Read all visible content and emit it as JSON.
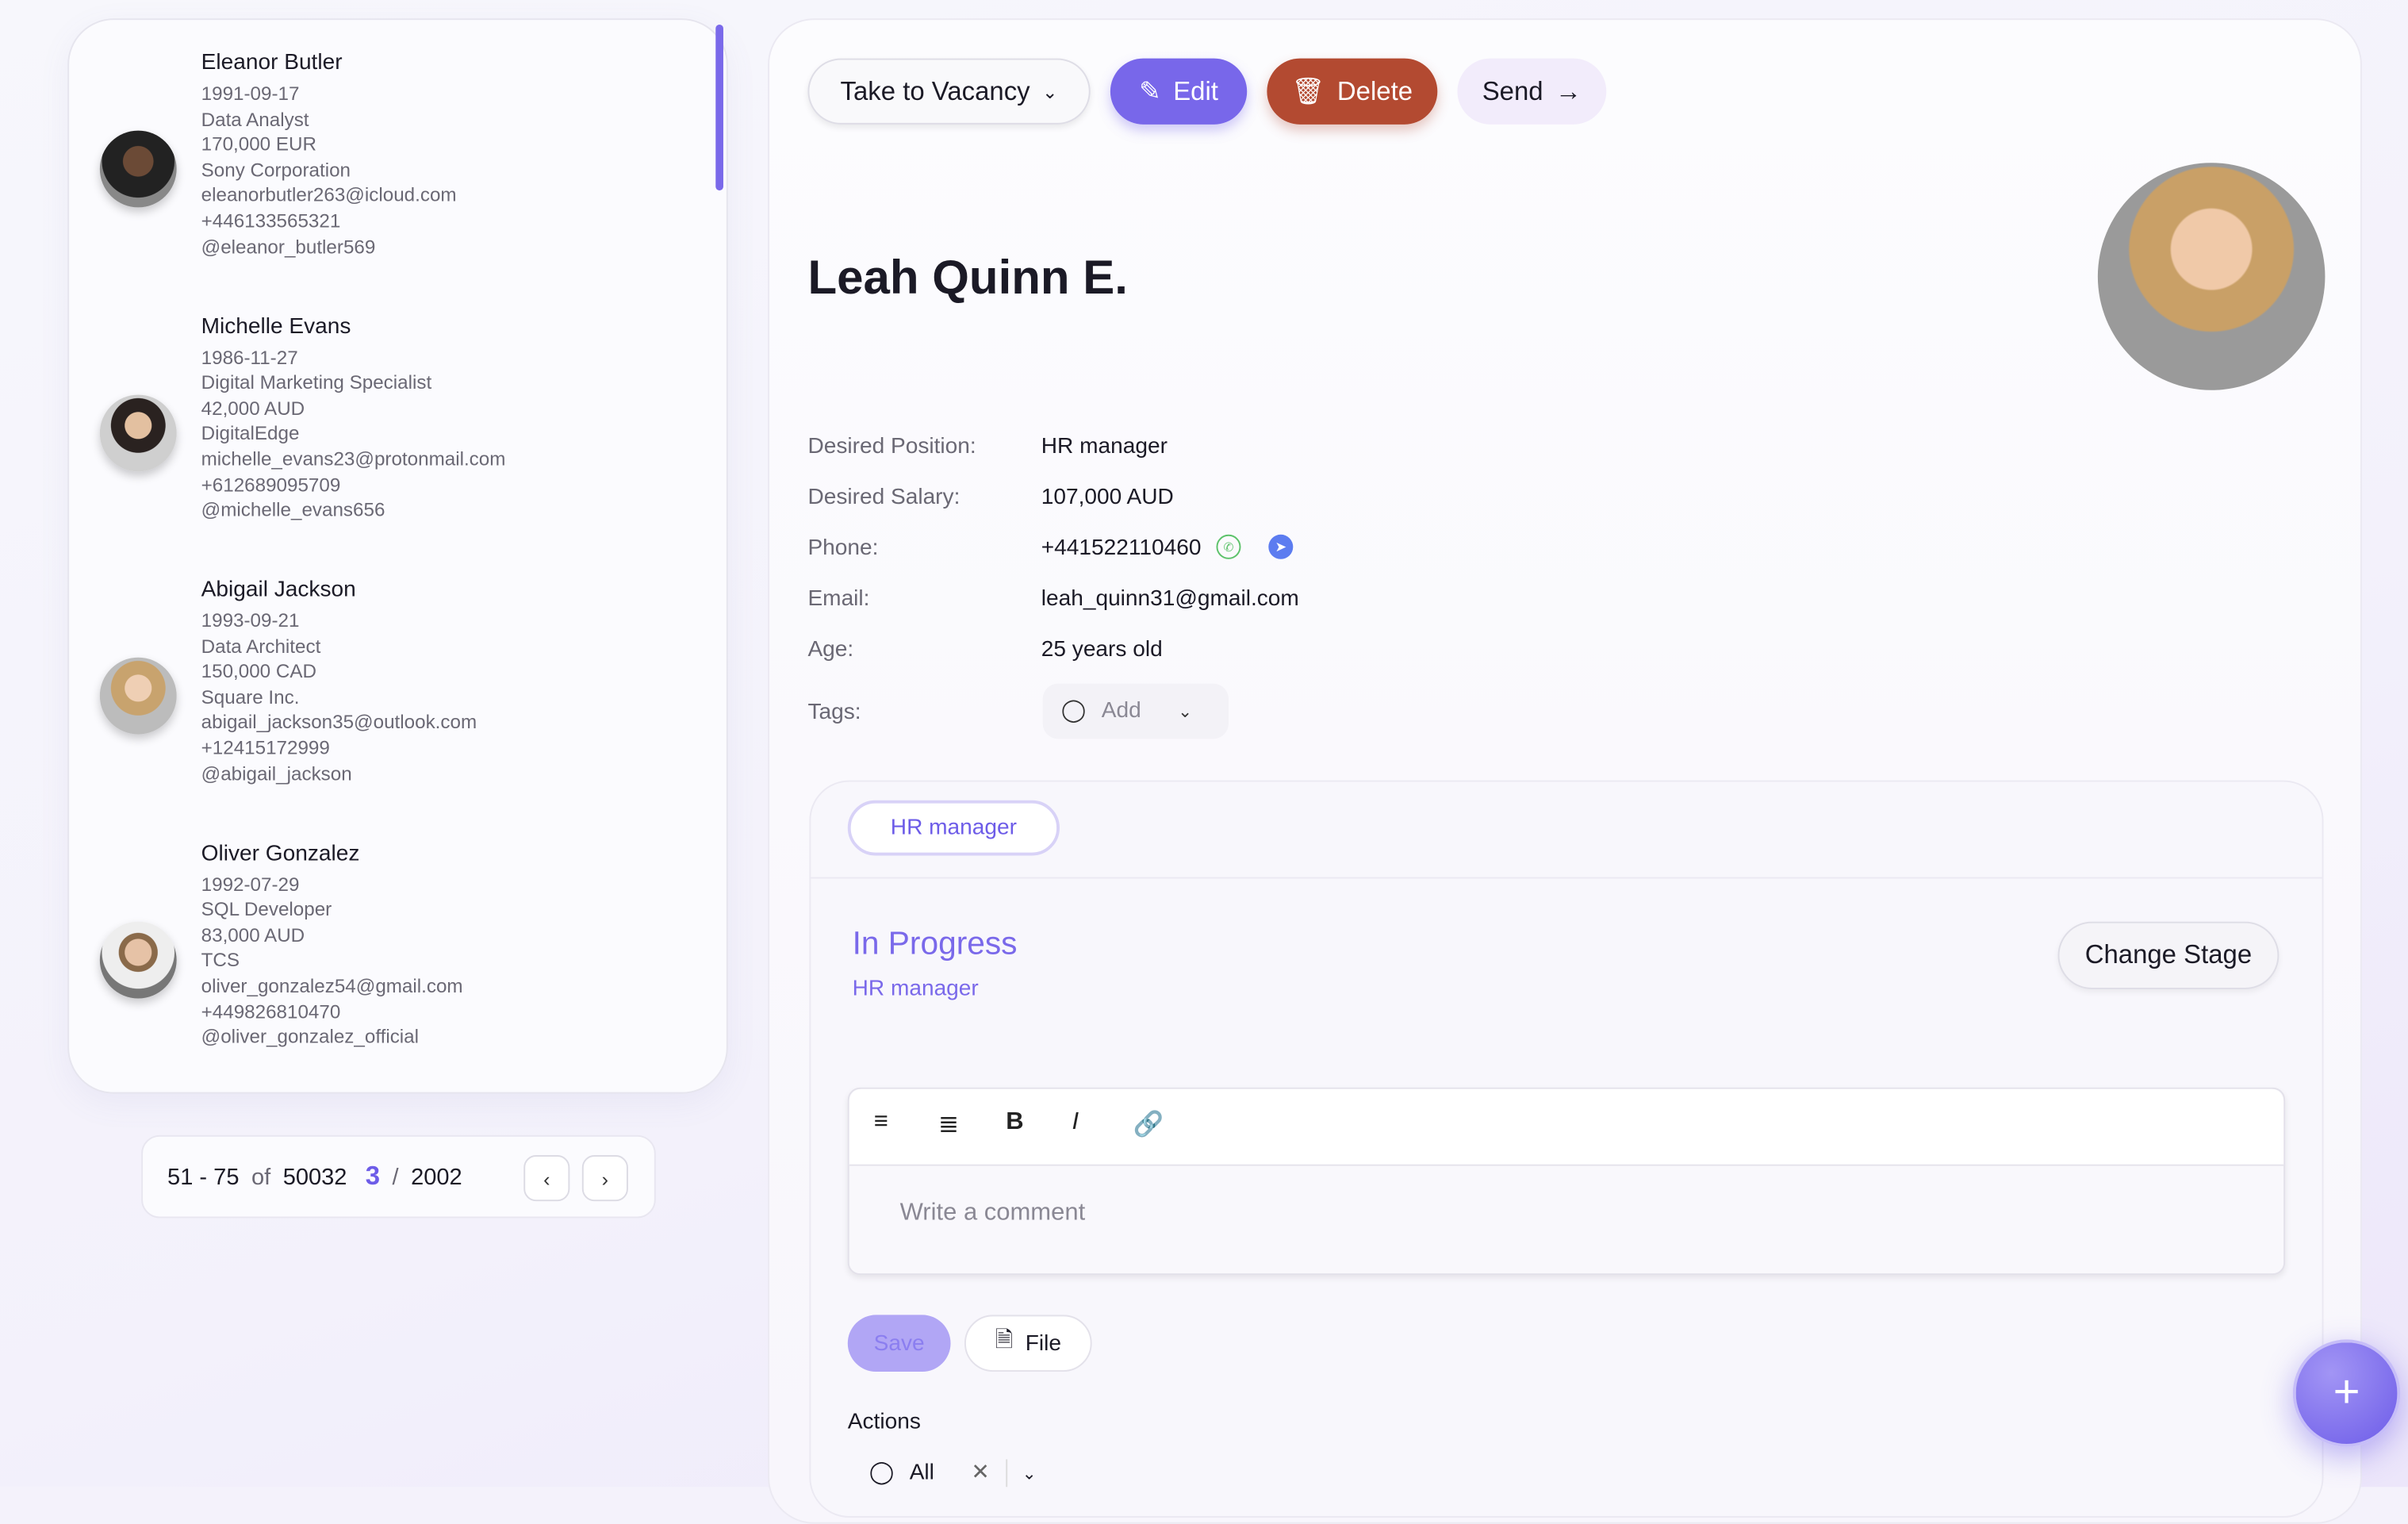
{
  "candidates": [
    {
      "name": "Eleanor Butler",
      "lines": [
        "1991-09-17",
        "Data Analyst",
        "170,000 EUR",
        "Sony Corporation",
        "eleanorbutler263@icloud.com",
        "+446133565321",
        "@eleanor_butler569"
      ]
    },
    {
      "name": "Michelle Evans",
      "lines": [
        "1986-11-27",
        "Digital Marketing Specialist",
        "42,000 AUD",
        "DigitalEdge",
        "michelle_evans23@protonmail.com",
        "+612689095709",
        "@michelle_evans656"
      ]
    },
    {
      "name": "Abigail Jackson",
      "lines": [
        "1993-09-21",
        "Data Architect",
        "150,000 CAD",
        "Square Inc.",
        "abigail_jackson35@outlook.com",
        "+12415172999",
        "@abigail_jackson"
      ]
    },
    {
      "name": "Oliver Gonzalez",
      "lines": [
        "1992-07-29",
        "SQL Developer",
        "83,000 AUD",
        "TCS",
        "oliver_gonzalez54@gmail.com",
        "+449826810470",
        "@oliver_gonzalez_official"
      ]
    }
  ],
  "pagination": {
    "range": "51 - 75",
    "of": "of",
    "total": "50032",
    "page": "3",
    "sep": "/",
    "pages": "2002"
  },
  "toolbar": {
    "take_to_vacancy": "Take to Vacancy",
    "edit": "Edit",
    "delete": "Delete",
    "send": "Send"
  },
  "profile": {
    "name": "Leah Quinn E.",
    "fields": [
      {
        "label": "Desired Position:",
        "value": "HR manager"
      },
      {
        "label": "Desired Salary:",
        "value": "107,000 AUD"
      },
      {
        "label": "Phone:",
        "value": "+441522110460"
      },
      {
        "label": "Email:",
        "value": "leah_quinn31@gmail.com"
      },
      {
        "label": "Age:",
        "value": "25 years old"
      }
    ],
    "tags_label": "Tags:",
    "tags_placeholder": "Add"
  },
  "vacancy": {
    "tab": "HR manager",
    "stage": "In Progress",
    "position": "HR manager",
    "change_stage": "Change Stage"
  },
  "comment": {
    "placeholder": "Write a comment",
    "save": "Save",
    "file": "File"
  },
  "actions": {
    "title": "Actions",
    "filter": "All"
  },
  "colors": {
    "accent": "#7a69ea",
    "delete": "#b34a31",
    "send_bg": "#f2ecfb"
  }
}
